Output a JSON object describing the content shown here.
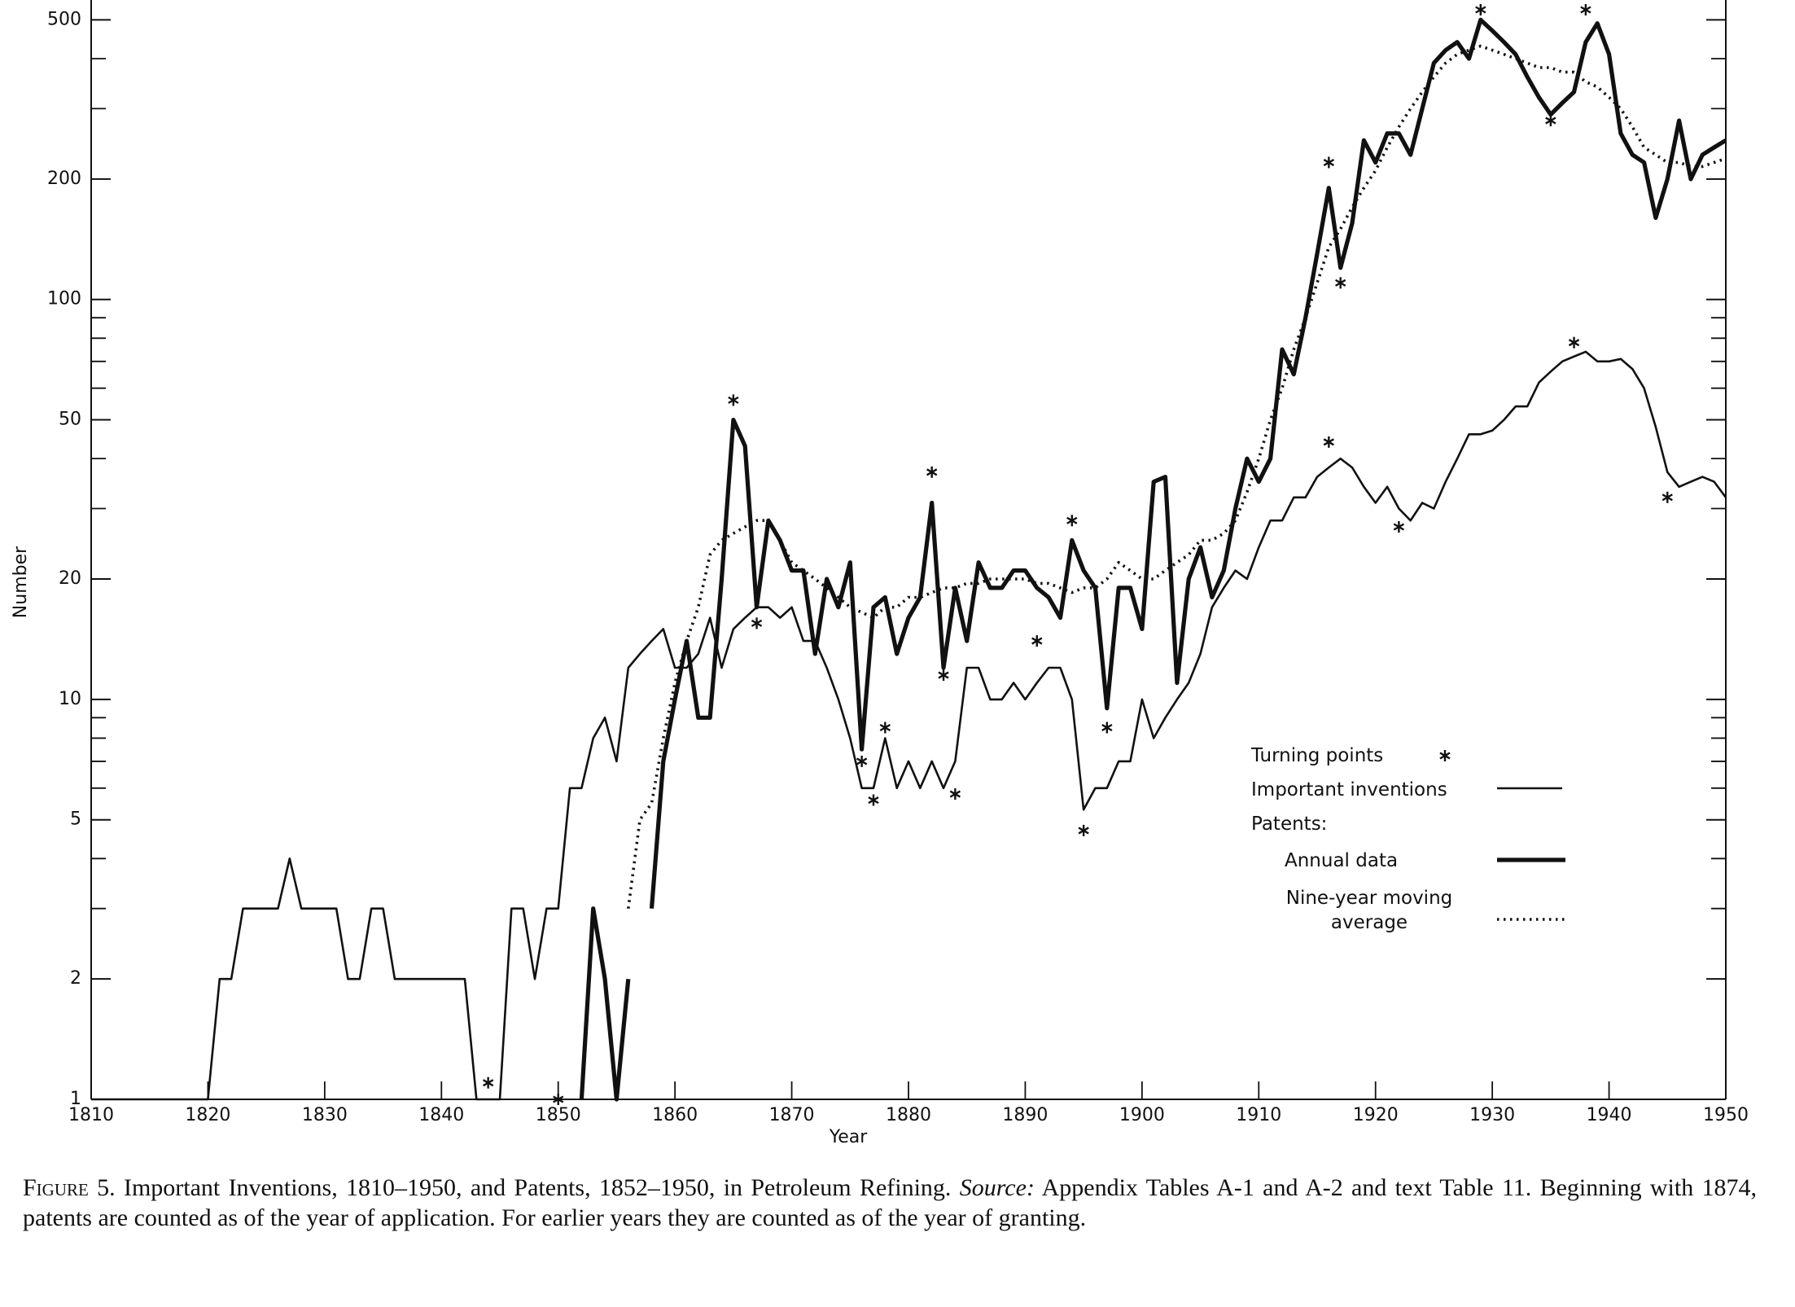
{
  "chart_data": {
    "type": "line",
    "x_label": "Year",
    "y_label": "Number",
    "log_y": true,
    "xlim": [
      1810,
      1950
    ],
    "xticks": [
      1810,
      1820,
      1830,
      1840,
      1850,
      1860,
      1870,
      1880,
      1890,
      1900,
      1910,
      1920,
      1930,
      1940,
      1950
    ],
    "ylim": [
      1,
      540
    ],
    "yticks": [
      1,
      2,
      5,
      10,
      20,
      50,
      100,
      200,
      500
    ],
    "yticks_minor": [
      3,
      4,
      6,
      7,
      8,
      9,
      30,
      40,
      60,
      70,
      80,
      90,
      300,
      400
    ],
    "legend": "lower right",
    "legend_group": "Patents:",
    "x": [
      1810,
      1811,
      1812,
      1813,
      1814,
      1815,
      1816,
      1817,
      1818,
      1819,
      1820,
      1821,
      1822,
      1823,
      1824,
      1825,
      1826,
      1827,
      1828,
      1829,
      1830,
      1831,
      1832,
      1833,
      1834,
      1835,
      1836,
      1837,
      1838,
      1839,
      1840,
      1841,
      1842,
      1843,
      1844,
      1845,
      1846,
      1847,
      1848,
      1849,
      1850,
      1851,
      1852,
      1853,
      1854,
      1855,
      1856,
      1857,
      1858,
      1859,
      1860,
      1861,
      1862,
      1863,
      1864,
      1865,
      1866,
      1867,
      1868,
      1869,
      1870,
      1871,
      1872,
      1873,
      1874,
      1875,
      1876,
      1877,
      1878,
      1879,
      1880,
      1881,
      1882,
      1883,
      1884,
      1885,
      1886,
      1887,
      1888,
      1889,
      1890,
      1891,
      1892,
      1893,
      1894,
      1895,
      1896,
      1897,
      1898,
      1899,
      1900,
      1901,
      1902,
      1903,
      1904,
      1905,
      1906,
      1907,
      1908,
      1909,
      1910,
      1911,
      1912,
      1913,
      1914,
      1915,
      1916,
      1917,
      1918,
      1919,
      1920,
      1921,
      1922,
      1923,
      1924,
      1925,
      1926,
      1927,
      1928,
      1929,
      1930,
      1931,
      1932,
      1933,
      1934,
      1935,
      1936,
      1937,
      1938,
      1939,
      1940,
      1941,
      1942,
      1943,
      1944,
      1945,
      1946,
      1947,
      1948,
      1949,
      1950
    ],
    "series": [
      {
        "name": "Important inventions",
        "color": "#111111",
        "style": "solid",
        "line_width": 2.6,
        "values": [
          1,
          1,
          1,
          1,
          1,
          1,
          1,
          1,
          1,
          1,
          1,
          2,
          2,
          3,
          3,
          3,
          3,
          4,
          3,
          3,
          3,
          3,
          2,
          2,
          3,
          3,
          2,
          2,
          2,
          2,
          2,
          2,
          2,
          1,
          1,
          1,
          3,
          3,
          2,
          3,
          3,
          6,
          6,
          8,
          9,
          7,
          12,
          13,
          14,
          15,
          12,
          12,
          13,
          16,
          12,
          15,
          16,
          17,
          17,
          16,
          17,
          14,
          14,
          12,
          10,
          8,
          6,
          6,
          8,
          6,
          7,
          6,
          7,
          6,
          7,
          12,
          12,
          10,
          10,
          11,
          10,
          11,
          12,
          12,
          10,
          5.3,
          6,
          6,
          7,
          7,
          10,
          8,
          9,
          10,
          11,
          13,
          17,
          19,
          21,
          20,
          24,
          28,
          28,
          32,
          32,
          36,
          38,
          40,
          38,
          34,
          31,
          34,
          30,
          28,
          31,
          30,
          35,
          40,
          46,
          46,
          47,
          50,
          54,
          54,
          62,
          66,
          70,
          72,
          74,
          70,
          70,
          71,
          67,
          60,
          48,
          37,
          34,
          35,
          36,
          35,
          32
        ]
      },
      {
        "name": "Annual data",
        "color": "#111111",
        "style": "solid",
        "line_width": 5.2,
        "values": [
          null,
          null,
          null,
          null,
          null,
          null,
          null,
          null,
          null,
          null,
          null,
          null,
          null,
          null,
          null,
          null,
          null,
          null,
          null,
          null,
          null,
          null,
          null,
          null,
          null,
          null,
          null,
          null,
          null,
          null,
          null,
          null,
          null,
          null,
          null,
          null,
          null,
          null,
          null,
          null,
          null,
          null,
          1,
          3,
          2,
          1,
          2,
          null,
          3,
          7,
          10,
          14,
          9,
          9,
          20,
          50,
          43,
          17,
          28,
          25,
          21,
          21,
          13,
          20,
          17,
          22,
          7.5,
          17,
          18,
          13,
          16,
          18,
          31,
          12,
          19,
          14,
          22,
          19,
          19,
          21,
          21,
          19,
          18,
          16,
          25,
          21,
          19,
          9.5,
          19,
          19,
          15,
          35,
          36,
          11,
          20,
          24,
          18,
          21,
          30,
          40,
          35,
          40,
          75,
          65,
          90,
          130,
          190,
          120,
          155,
          250,
          220,
          260,
          260,
          230,
          300,
          390,
          420,
          440,
          400,
          500,
          470,
          440,
          410,
          360,
          320,
          290,
          310,
          330,
          440,
          490,
          410,
          260,
          230,
          220,
          160,
          200,
          280,
          200,
          230,
          240,
          250
        ]
      },
      {
        "name": "Nine-year moving average",
        "color": "#111111",
        "style": "dotted",
        "line_width": 3.6,
        "values": [
          null,
          null,
          null,
          null,
          null,
          null,
          null,
          null,
          null,
          null,
          null,
          null,
          null,
          null,
          null,
          null,
          null,
          null,
          null,
          null,
          null,
          null,
          null,
          null,
          null,
          null,
          null,
          null,
          null,
          null,
          null,
          null,
          null,
          null,
          null,
          null,
          null,
          null,
          null,
          null,
          null,
          null,
          null,
          null,
          null,
          null,
          3,
          5,
          5.5,
          8,
          11,
          14,
          17,
          23,
          25,
          26,
          27,
          28,
          28,
          25,
          22,
          21,
          20,
          19,
          18,
          17,
          16.5,
          16,
          17,
          17,
          18,
          18,
          18.5,
          19,
          19,
          19.5,
          19.5,
          20,
          20,
          20,
          20,
          19.5,
          19.5,
          19,
          18.5,
          19,
          19,
          20,
          22,
          21,
          20,
          20,
          21,
          22,
          23,
          25,
          25,
          26,
          28,
          33,
          40,
          50,
          60,
          75,
          90,
          110,
          135,
          150,
          170,
          190,
          210,
          240,
          270,
          300,
          330,
          360,
          390,
          410,
          420,
          430,
          420,
          410,
          400,
          390,
          380,
          380,
          370,
          370,
          350,
          340,
          320,
          300,
          270,
          240,
          230,
          220,
          220,
          215,
          215,
          220,
          225
        ]
      }
    ],
    "turning_points": {
      "name": "Turning points",
      "color": "#111111",
      "x": [
        1844,
        1850,
        1865,
        1867,
        1876,
        1877,
        1878,
        1882,
        1883,
        1884,
        1891,
        1894,
        1895,
        1897,
        1916,
        1917,
        1916,
        1922,
        1929,
        1935,
        1938,
        1937,
        1945
      ],
      "values": [
        1.1,
        1,
        56,
        15.5,
        7,
        5.6,
        8.5,
        37,
        11.5,
        5.8,
        14,
        28,
        4.7,
        8.5,
        220,
        110,
        44,
        27,
        530,
        280,
        530,
        78,
        32
      ]
    }
  },
  "caption": {
    "figure_label": "Figure 5.",
    "title": "Important Inventions, 1810–1950, and Patents, 1852–1950, in Petroleum Refining.",
    "source_label": "Source:",
    "source_text": "Appendix Tables A-1 and A-2 and text Table 11. Beginning with 1874, patents are counted as of the year of application. For earlier years they are counted as of the year of granting."
  }
}
